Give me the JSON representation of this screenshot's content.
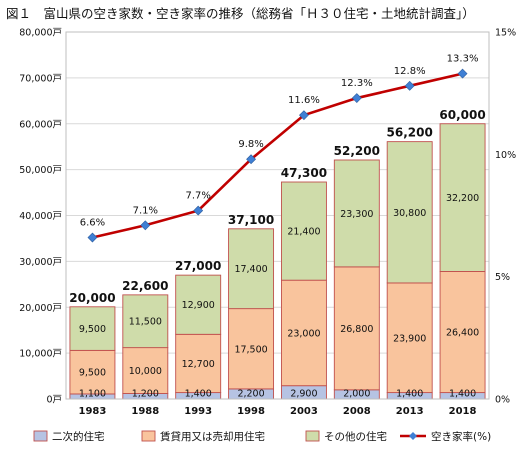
{
  "title": "図１　富山県の空き家数・空き家率の推移（総務省「Ｈ３０住宅・土地統計調査」）",
  "chart_data": {
    "type": "bar",
    "stacked": true,
    "categories": [
      "1983",
      "1988",
      "1993",
      "1998",
      "2003",
      "2008",
      "2013",
      "2018"
    ],
    "y_unit": "戸",
    "ylim": [
      0,
      80000
    ],
    "y_ticks": [
      "0戸",
      "10,000戸",
      "20,000戸",
      "30,000戸",
      "40,000戸",
      "50,000戸",
      "60,000戸",
      "70,000戸",
      "80,000戸"
    ],
    "y2lim": [
      0,
      15
    ],
    "y2_ticks": [
      "0%",
      "5%",
      "10%",
      "15%"
    ],
    "series": [
      {
        "name": "二次的住宅",
        "values": [
          1100,
          1200,
          1400,
          2200,
          2900,
          2000,
          1400,
          1400
        ],
        "labels": [
          "1,100",
          "1,200",
          "1,400",
          "2,200",
          "2,900",
          "2,000",
          "1,400",
          "1,400"
        ],
        "color": "#b6c3e3"
      },
      {
        "name": "賃貸用又は売却用住宅",
        "values": [
          9500,
          10000,
          12700,
          17500,
          23000,
          26800,
          23900,
          26400
        ],
        "labels": [
          "9,500",
          "10,000",
          "12,700",
          "17,500",
          "23,000",
          "26,800",
          "23,900",
          "26,400"
        ],
        "color": "#f9c49d"
      },
      {
        "name": "その他の住宅",
        "values": [
          9500,
          11500,
          12900,
          17400,
          21400,
          23300,
          30800,
          32200
        ],
        "labels": [
          "9,500",
          "11,500",
          "12,900",
          "17,400",
          "21,400",
          "23,300",
          "30,800",
          "32,200"
        ],
        "color": "#cfdcaa"
      }
    ],
    "totals": [
      "20,000",
      "22,600",
      "27,000",
      "37,100",
      "47,300",
      "52,200",
      "56,200",
      "60,000"
    ],
    "rate": {
      "name": "空き家率(%)",
      "values": [
        6.6,
        7.1,
        7.7,
        9.8,
        11.6,
        12.3,
        12.8,
        13.3
      ],
      "labels": [
        "6.6%",
        "7.1%",
        "7.7%",
        "9.8%",
        "11.6%",
        "12.3%",
        "12.8%",
        "13.3%"
      ],
      "color": "#c00000",
      "marker_color": "#3f7fd4"
    },
    "grid": true,
    "legend_position": "bottom"
  }
}
